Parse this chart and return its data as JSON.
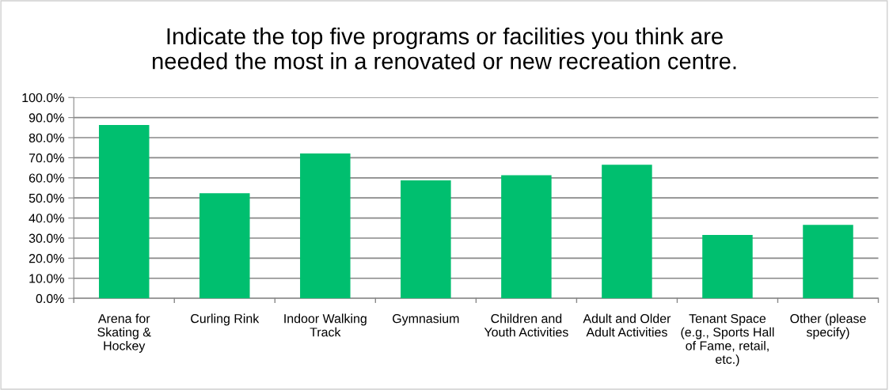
{
  "chart_data": {
    "type": "bar",
    "title": "Indicate the top five programs or facilities you think are\nneeded the most in a renovated or new recreation centre.",
    "categories": [
      "Arena for\nSkating &\nHockey",
      "Curling Rink",
      "Indoor Walking\nTrack",
      "Gymnasium",
      "Children and\nYouth Activities",
      "Adult and Older\nAdult Activities",
      "Tenant Space\n(e.g., Sports Hall\nof Fame, retail,\netc.)",
      "Other (please\nspecify)"
    ],
    "values": [
      86.3,
      52.3,
      72.1,
      58.7,
      61.3,
      66.5,
      31.6,
      36.6
    ],
    "color": "#00bf6f",
    "ylim": [
      0,
      100
    ],
    "yticks": [
      {
        "value": 0,
        "label": "0.0%"
      },
      {
        "value": 10,
        "label": "10.0%"
      },
      {
        "value": 20,
        "label": "20.0%"
      },
      {
        "value": 30,
        "label": "30.0%"
      },
      {
        "value": 40,
        "label": "40.0%"
      },
      {
        "value": 50,
        "label": "50.0%"
      },
      {
        "value": 60,
        "label": "60.0%"
      },
      {
        "value": 70,
        "label": "70.0%"
      },
      {
        "value": 80,
        "label": "80.0%"
      },
      {
        "value": 90,
        "label": "90.0%"
      },
      {
        "value": 100,
        "label": "100.0%"
      }
    ],
    "grid": "y"
  }
}
